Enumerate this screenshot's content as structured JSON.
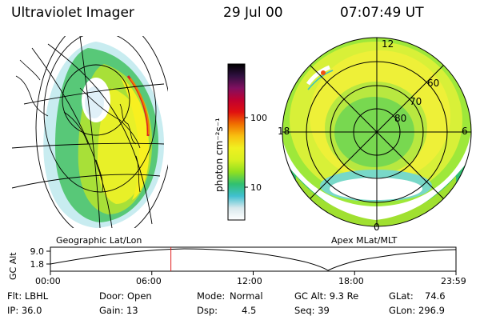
{
  "header": {
    "instrument": "Ultraviolet Imager",
    "date": "29 Jul 00",
    "time": "07:07:49 UT"
  },
  "left_panel": {
    "caption": "Geographic Lat/Lon"
  },
  "right_panel": {
    "caption": "Apex MLat/MLT",
    "mlt_labels": [
      "12",
      "18",
      "6",
      "0"
    ],
    "lat_labels": [
      "60",
      "70",
      "80"
    ]
  },
  "colorbar": {
    "label": "photon cm⁻²s⁻¹",
    "ticks": [
      "100",
      "10"
    ],
    "colors": [
      "#ffffff",
      "#d8e8ec",
      "#40c0d0",
      "#30c070",
      "#90e020",
      "#d8f020",
      "#f0f020",
      "#f8c010",
      "#f07000",
      "#e01010",
      "#c00030",
      "#801060",
      "#301040",
      "#000000"
    ]
  },
  "timeline": {
    "ylabel": "GC Alt",
    "yticks": [
      "9.0",
      "1.8"
    ],
    "xticks": [
      "00:00",
      "06:00",
      "12:00",
      "18:00",
      "23:59"
    ],
    "marker_hour": 7.13
  },
  "info": {
    "flt": "Flt: LBHL",
    "ip": "IP: 36.0",
    "door": "Door: Open",
    "gain": "Gain: 13",
    "mode_label": "Mode:",
    "mode_value": "Normal",
    "dsp_label": "Dsp:",
    "dsp_value": "4.5",
    "gcalt": "GC Alt: 9.3 Re",
    "seq": "Seq: 39",
    "glat_label": "GLat:",
    "glat_value": "74.6",
    "glon_label": "GLon:",
    "glon_value": "296.9"
  }
}
